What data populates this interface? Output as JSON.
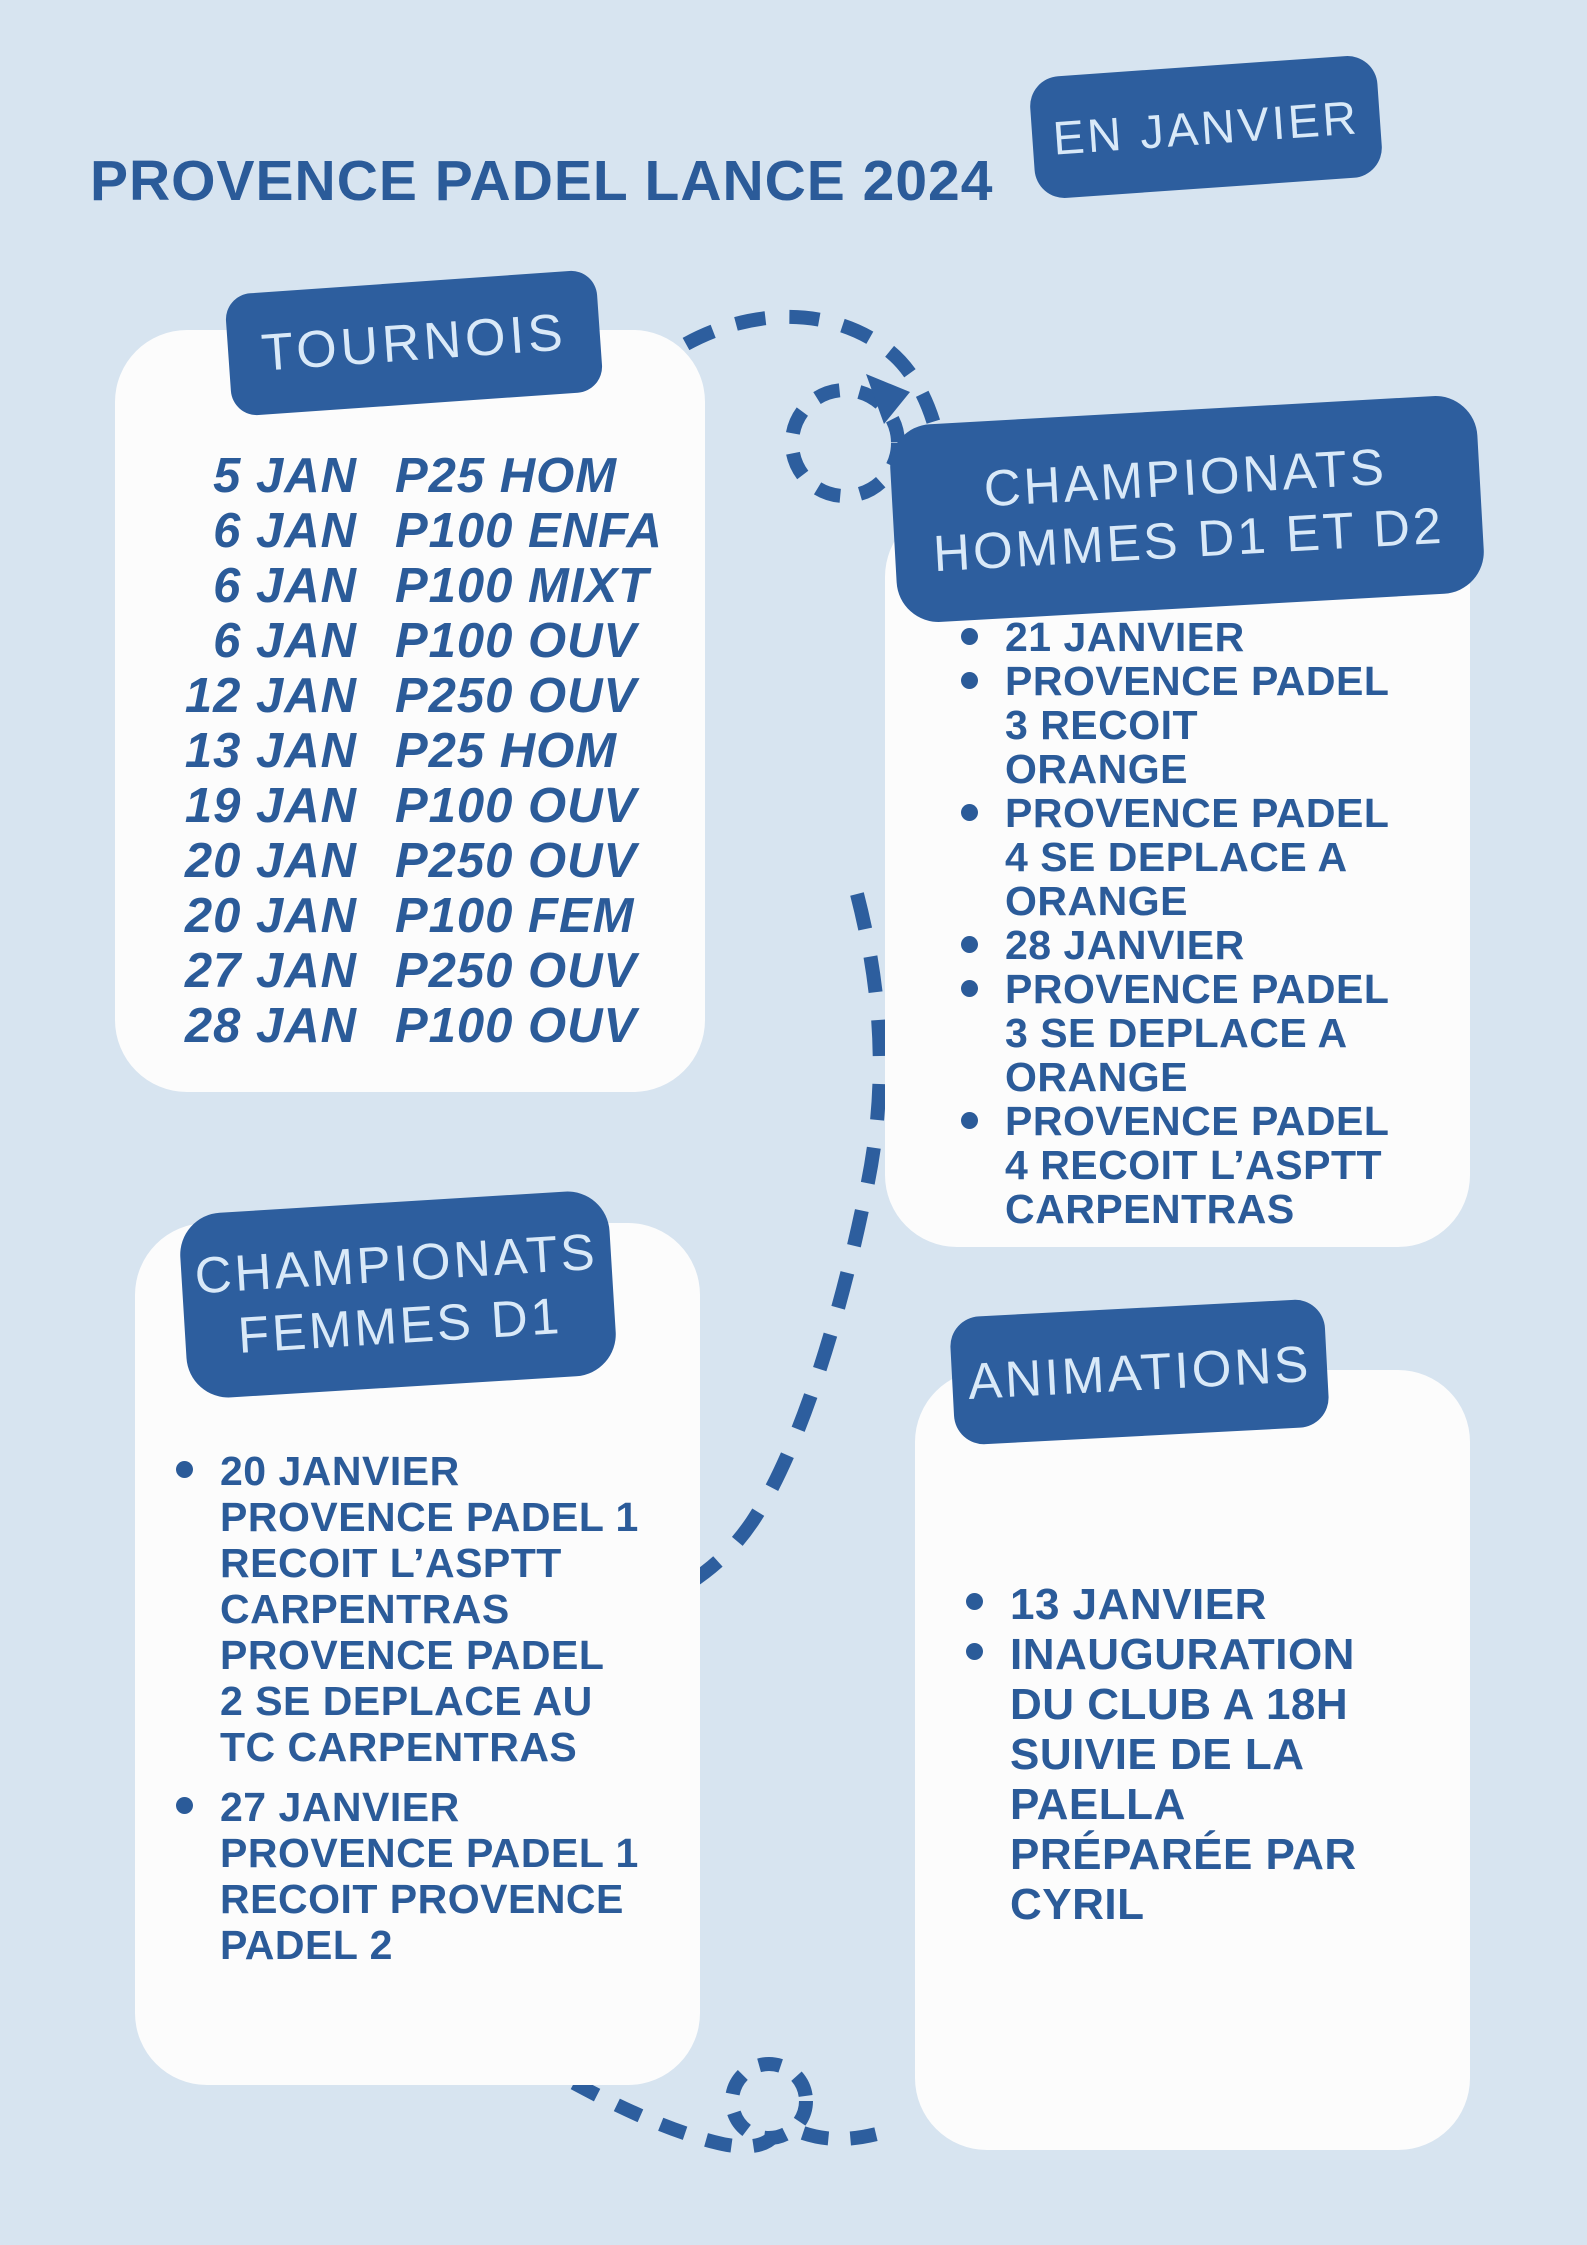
{
  "page": {
    "title": "PROVENCE PADEL LANCE 2024",
    "period_badge": "EN JANVIER"
  },
  "colors": {
    "background": "#d7e4f0",
    "card": "#fcfcfc",
    "badge": "#2d5e9e",
    "badge_text": "#d9e9f8",
    "text": "#2b5b99"
  },
  "tournois": {
    "badge": "TOURNOIS",
    "rows": [
      {
        "date": "5 JAN",
        "event": "P25 HOM"
      },
      {
        "date": "6 JAN",
        "event": "P100 ENFA"
      },
      {
        "date": "6 JAN",
        "event": "P100 MIXT"
      },
      {
        "date": "6 JAN",
        "event": "P100 OUV"
      },
      {
        "date": "12 JAN",
        "event": "P250 OUV"
      },
      {
        "date": "13 JAN",
        "event": "P25 HOM"
      },
      {
        "date": "19 JAN",
        "event": "P100 OUV"
      },
      {
        "date": "20 JAN",
        "event": "P250 OUV"
      },
      {
        "date": "20 JAN",
        "event": "P100  FEM"
      },
      {
        "date": "27 JAN",
        "event": "P250 OUV"
      },
      {
        "date": "28 JAN",
        "event": "P100 OUV"
      }
    ]
  },
  "hommes": {
    "badge": "CHAMPIONATS\nHOMMES D1 ET D2",
    "items": [
      [
        "21 JANVIER"
      ],
      [
        "PROVENCE PADEL",
        "3 RECOIT",
        "ORANGE"
      ],
      [
        "PROVENCE PADEL",
        "4  SE DEPLACE A",
        "ORANGE"
      ],
      [
        "28 JANVIER"
      ],
      [
        "PROVENCE PADEL",
        "3 SE DEPLACE A",
        "ORANGE"
      ],
      [
        "PROVENCE PADEL",
        "4 RECOIT L’ASPTT",
        "CARPENTRAS"
      ]
    ]
  },
  "femmes": {
    "badge": "CHAMPIONATS\nFEMMES D1",
    "items": [
      [
        "20 JANVIER",
        "PROVENCE PADEL 1",
        "RECOIT L’ASPTT",
        "CARPENTRAS",
        "PROVENCE PADEL",
        "2 SE DEPLACE AU",
        "TC CARPENTRAS"
      ],
      [
        "27 JANVIER",
        "PROVENCE PADEL 1",
        "RECOIT PROVENCE",
        "PADEL 2"
      ]
    ]
  },
  "animations": {
    "badge": "ANIMATIONS",
    "items": [
      [
        "13 JANVIER"
      ],
      [
        "INAUGURATION",
        "DU CLUB A 18H",
        "SUIVIE DE LA",
        "PAELLA",
        "PRÉPARÉE PAR",
        "CYRIL"
      ]
    ]
  }
}
